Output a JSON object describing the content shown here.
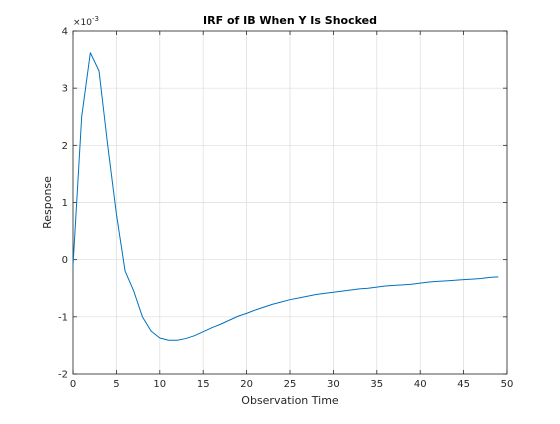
{
  "chart_data": {
    "type": "line",
    "title": "IRF of IB When Y Is Shocked",
    "xlabel": "Observation Time",
    "ylabel": "Response",
    "xlim": [
      0,
      50
    ],
    "ylim": [
      -2,
      4
    ],
    "y_scale_exponent_label": "×10",
    "y_scale_exponent_power": "-3",
    "y_multiplier": 0.001,
    "x_ticks": [
      0,
      5,
      10,
      15,
      20,
      25,
      30,
      35,
      40,
      45,
      50
    ],
    "x_tick_labels": [
      "0",
      "5",
      "10",
      "15",
      "20",
      "25",
      "30",
      "35",
      "40",
      "45",
      "50"
    ],
    "y_ticks": [
      -2,
      -1,
      0,
      1,
      2,
      3,
      4
    ],
    "y_tick_labels": [
      "-2",
      "-1",
      "0",
      "1",
      "2",
      "3",
      "4"
    ],
    "grid": true,
    "legend": "none",
    "series": [
      {
        "color": "#0072bd",
        "x": [
          0,
          1,
          2,
          3,
          4,
          5,
          6,
          7,
          8,
          9,
          10,
          11,
          12,
          13,
          14,
          15,
          16,
          17,
          18,
          19,
          20,
          21,
          22,
          23,
          24,
          25,
          26,
          27,
          28,
          29,
          30,
          31,
          32,
          33,
          34,
          35,
          36,
          37,
          38,
          39,
          40,
          41,
          42,
          43,
          44,
          45,
          46,
          47,
          48,
          49
        ],
        "y": [
          -0.1,
          2.5,
          3.62,
          3.3,
          2.0,
          0.8,
          -0.2,
          -0.55,
          -1.0,
          -1.25,
          -1.37,
          -1.41,
          -1.41,
          -1.38,
          -1.33,
          -1.26,
          -1.19,
          -1.13,
          -1.06,
          -0.99,
          -0.94,
          -0.88,
          -0.83,
          -0.78,
          -0.74,
          -0.7,
          -0.67,
          -0.64,
          -0.61,
          -0.59,
          -0.57,
          -0.55,
          -0.53,
          -0.51,
          -0.5,
          -0.48,
          -0.46,
          -0.45,
          -0.44,
          -0.43,
          -0.41,
          -0.39,
          -0.38,
          -0.37,
          -0.36,
          -0.35,
          -0.34,
          -0.33,
          -0.31,
          -0.3
        ]
      }
    ]
  }
}
